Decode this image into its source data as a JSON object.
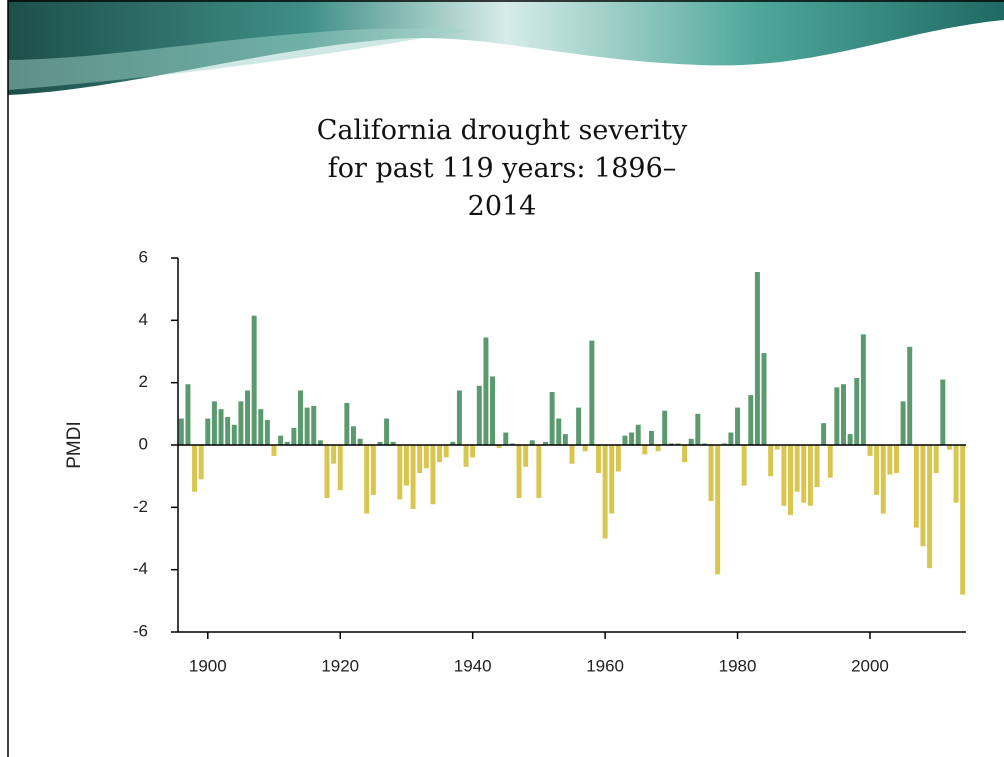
{
  "chart_data": {
    "type": "bar",
    "title": "California drought severity for past 119 years: 1896–2014",
    "ylabel": "PMDI",
    "x": [
      1896,
      1897,
      1898,
      1899,
      1900,
      1901,
      1902,
      1903,
      1904,
      1905,
      1906,
      1907,
      1908,
      1909,
      1910,
      1911,
      1912,
      1913,
      1914,
      1915,
      1916,
      1917,
      1918,
      1919,
      1920,
      1921,
      1922,
      1923,
      1924,
      1925,
      1926,
      1927,
      1928,
      1929,
      1930,
      1931,
      1932,
      1933,
      1934,
      1935,
      1936,
      1937,
      1938,
      1939,
      1940,
      1941,
      1942,
      1943,
      1944,
      1945,
      1946,
      1947,
      1948,
      1949,
      1950,
      1951,
      1952,
      1953,
      1954,
      1955,
      1956,
      1957,
      1958,
      1959,
      1960,
      1961,
      1962,
      1963,
      1964,
      1965,
      1966,
      1967,
      1968,
      1969,
      1970,
      1971,
      1972,
      1973,
      1974,
      1975,
      1976,
      1977,
      1978,
      1979,
      1980,
      1981,
      1982,
      1983,
      1984,
      1985,
      1986,
      1987,
      1988,
      1989,
      1990,
      1991,
      1992,
      1993,
      1994,
      1995,
      1996,
      1997,
      1998,
      1999,
      2000,
      2001,
      2002,
      2003,
      2004,
      2005,
      2006,
      2007,
      2008,
      2009,
      2010,
      2011,
      2012,
      2013,
      2014
    ],
    "values": [
      0.85,
      1.95,
      -1.5,
      -1.1,
      0.85,
      1.4,
      1.15,
      0.9,
      0.65,
      1.4,
      1.75,
      4.15,
      1.15,
      0.8,
      -0.35,
      0.3,
      0.1,
      0.55,
      1.75,
      1.2,
      1.25,
      0.15,
      -1.7,
      -0.6,
      -1.45,
      1.35,
      0.6,
      0.2,
      -2.2,
      -1.6,
      0.1,
      0.85,
      0.1,
      -1.75,
      -1.3,
      -2.05,
      -0.9,
      -0.75,
      -1.9,
      -0.55,
      -0.4,
      0.1,
      1.75,
      -0.7,
      -0.4,
      1.9,
      3.45,
      2.2,
      -0.1,
      0.4,
      0.05,
      -1.7,
      -0.7,
      0.15,
      -1.7,
      0.1,
      1.7,
      0.85,
      0.35,
      -0.6,
      1.2,
      -0.2,
      3.35,
      -0.9,
      -3.0,
      -2.2,
      -0.85,
      0.3,
      0.4,
      0.65,
      -0.3,
      0.45,
      -0.2,
      1.1,
      0.05,
      0.05,
      -0.55,
      0.2,
      1.0,
      0.05,
      -1.8,
      -4.15,
      0.05,
      0.4,
      1.2,
      -1.3,
      1.6,
      5.55,
      2.95,
      -1.0,
      -0.15,
      -1.95,
      -2.25,
      -1.5,
      -1.85,
      -1.95,
      -1.35,
      0.7,
      -1.05,
      1.85,
      1.95,
      0.35,
      2.15,
      3.55,
      -0.35,
      -1.6,
      -2.2,
      -0.95,
      -0.9,
      1.4,
      3.15,
      -2.65,
      -3.25,
      -3.95,
      -0.9,
      2.1,
      -0.15,
      -1.85,
      -4.8
    ],
    "positive_color": "#5b9a6f",
    "negative_color": "#d9c650",
    "xlim": [
      1895.5,
      2014.5
    ],
    "xticks": [
      1900,
      1920,
      1940,
      1960,
      1980,
      2000
    ],
    "ylim": [
      -6,
      6
    ],
    "yticks": [
      -6,
      -4,
      -2,
      0,
      2,
      4,
      6
    ]
  }
}
